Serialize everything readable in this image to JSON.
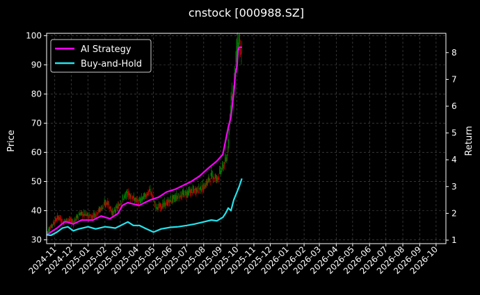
{
  "chart_data": {
    "type": "line",
    "title": "cnstock [000988.SZ]",
    "ylabel_left": "Price",
    "ylabel_right": "Return",
    "ylim_left": [
      28.7,
      100.8
    ],
    "ylim_right": [
      0.87,
      8.72
    ],
    "xlim": [
      "2024-10-17",
      "2026-10-19"
    ],
    "yticks_left": [
      30,
      40,
      50,
      60,
      70,
      80,
      90,
      100
    ],
    "yticks_right": [
      1,
      2,
      3,
      4,
      5,
      6,
      7,
      8
    ],
    "xtick_labels": [
      "2024-11",
      "2024-12",
      "2025-01",
      "2025-02",
      "2025-03",
      "2025-04",
      "2025-05",
      "2025-06",
      "2025-07",
      "2025-08",
      "2025-09",
      "2025-10",
      "2025-11",
      "2025-12",
      "2026-01",
      "2026-02",
      "2026-03",
      "2026-04",
      "2026-05",
      "2026-06",
      "2026-07",
      "2026-08",
      "2026-09",
      "2026-10"
    ],
    "grid": true,
    "legend_position": "top-left",
    "up_color": "#008000",
    "down_color": "#cc0000",
    "price_series": {
      "name": "Price (candlesticks)",
      "x": [
        "2024-10-17",
        "2024-10-28",
        "2024-11-08",
        "2024-11-15",
        "2024-11-25",
        "2024-12-05",
        "2024-12-16",
        "2024-12-27",
        "2025-01-08",
        "2025-01-20",
        "2025-02-05",
        "2025-02-15",
        "2025-02-25",
        "2025-03-05",
        "2025-03-15",
        "2025-03-25",
        "2025-04-05",
        "2025-04-15",
        "2025-04-25",
        "2025-05-05",
        "2025-05-20",
        "2025-06-01",
        "2025-06-15",
        "2025-07-01",
        "2025-07-15",
        "2025-08-01",
        "2025-08-15",
        "2025-08-25",
        "2025-09-05",
        "2025-09-12",
        "2025-09-15",
        "2025-09-20",
        "2025-09-25",
        "2025-09-28",
        "2025-10-01",
        "2025-10-05",
        "2025-10-08",
        "2025-10-10"
      ],
      "values": [
        32.5,
        35.5,
        38,
        36,
        37,
        36,
        39,
        38.5,
        38,
        40,
        43,
        39,
        41.5,
        44,
        46,
        44,
        43,
        45,
        47,
        41,
        42,
        43.5,
        45,
        46,
        47,
        48,
        52,
        51,
        55,
        58,
        64,
        78,
        82,
        90,
        96,
        98,
        92,
        95
      ]
    },
    "series": [
      {
        "name": "AI Strategy",
        "axis": "right",
        "color": "#ff00ff",
        "x": [
          "2024-10-17",
          "2024-11-05",
          "2024-11-20",
          "2024-12-05",
          "2024-12-20",
          "2025-01-10",
          "2025-01-25",
          "2025-02-10",
          "2025-02-25",
          "2025-03-05",
          "2025-03-15",
          "2025-03-25",
          "2025-04-05",
          "2025-04-15",
          "2025-04-25",
          "2025-05-10",
          "2025-05-25",
          "2025-06-10",
          "2025-06-25",
          "2025-07-10",
          "2025-07-25",
          "2025-08-10",
          "2025-08-25",
          "2025-09-05",
          "2025-09-10",
          "2025-09-15",
          "2025-09-20",
          "2025-09-25",
          "2025-09-28",
          "2025-10-01",
          "2025-10-03",
          "2025-10-05",
          "2025-10-10"
        ],
        "values": [
          1.2,
          1.45,
          1.7,
          1.6,
          1.75,
          1.75,
          1.9,
          1.8,
          2.0,
          2.3,
          2.4,
          2.35,
          2.3,
          2.4,
          2.5,
          2.6,
          2.8,
          2.9,
          3.05,
          3.2,
          3.4,
          3.7,
          3.95,
          4.2,
          4.7,
          5.2,
          5.6,
          6.5,
          7.2,
          7.5,
          8.1,
          8.2,
          8.2
        ]
      },
      {
        "name": "Buy-and-Hold",
        "axis": "right",
        "color": "#22e5ee",
        "x": [
          "2024-10-17",
          "2024-10-25",
          "2024-11-05",
          "2024-11-15",
          "2024-11-25",
          "2024-12-05",
          "2024-12-15",
          "2025-01-01",
          "2025-01-15",
          "2025-02-01",
          "2025-02-10",
          "2025-02-20",
          "2025-03-05",
          "2025-03-15",
          "2025-03-25",
          "2025-04-05",
          "2025-04-15",
          "2025-05-01",
          "2025-05-15",
          "2025-06-01",
          "2025-06-15",
          "2025-07-01",
          "2025-07-15",
          "2025-08-01",
          "2025-08-15",
          "2025-08-25",
          "2025-09-05",
          "2025-09-10",
          "2025-09-15",
          "2025-09-20",
          "2025-09-25",
          "2025-10-01",
          "2025-10-05",
          "2025-10-10"
        ],
        "values": [
          1.2,
          1.18,
          1.3,
          1.45,
          1.5,
          1.35,
          1.42,
          1.5,
          1.42,
          1.5,
          1.48,
          1.45,
          1.58,
          1.68,
          1.55,
          1.55,
          1.45,
          1.3,
          1.42,
          1.48,
          1.5,
          1.55,
          1.6,
          1.68,
          1.75,
          1.72,
          1.85,
          2.0,
          2.2,
          2.1,
          2.5,
          2.8,
          3.0,
          3.3
        ]
      }
    ]
  }
}
